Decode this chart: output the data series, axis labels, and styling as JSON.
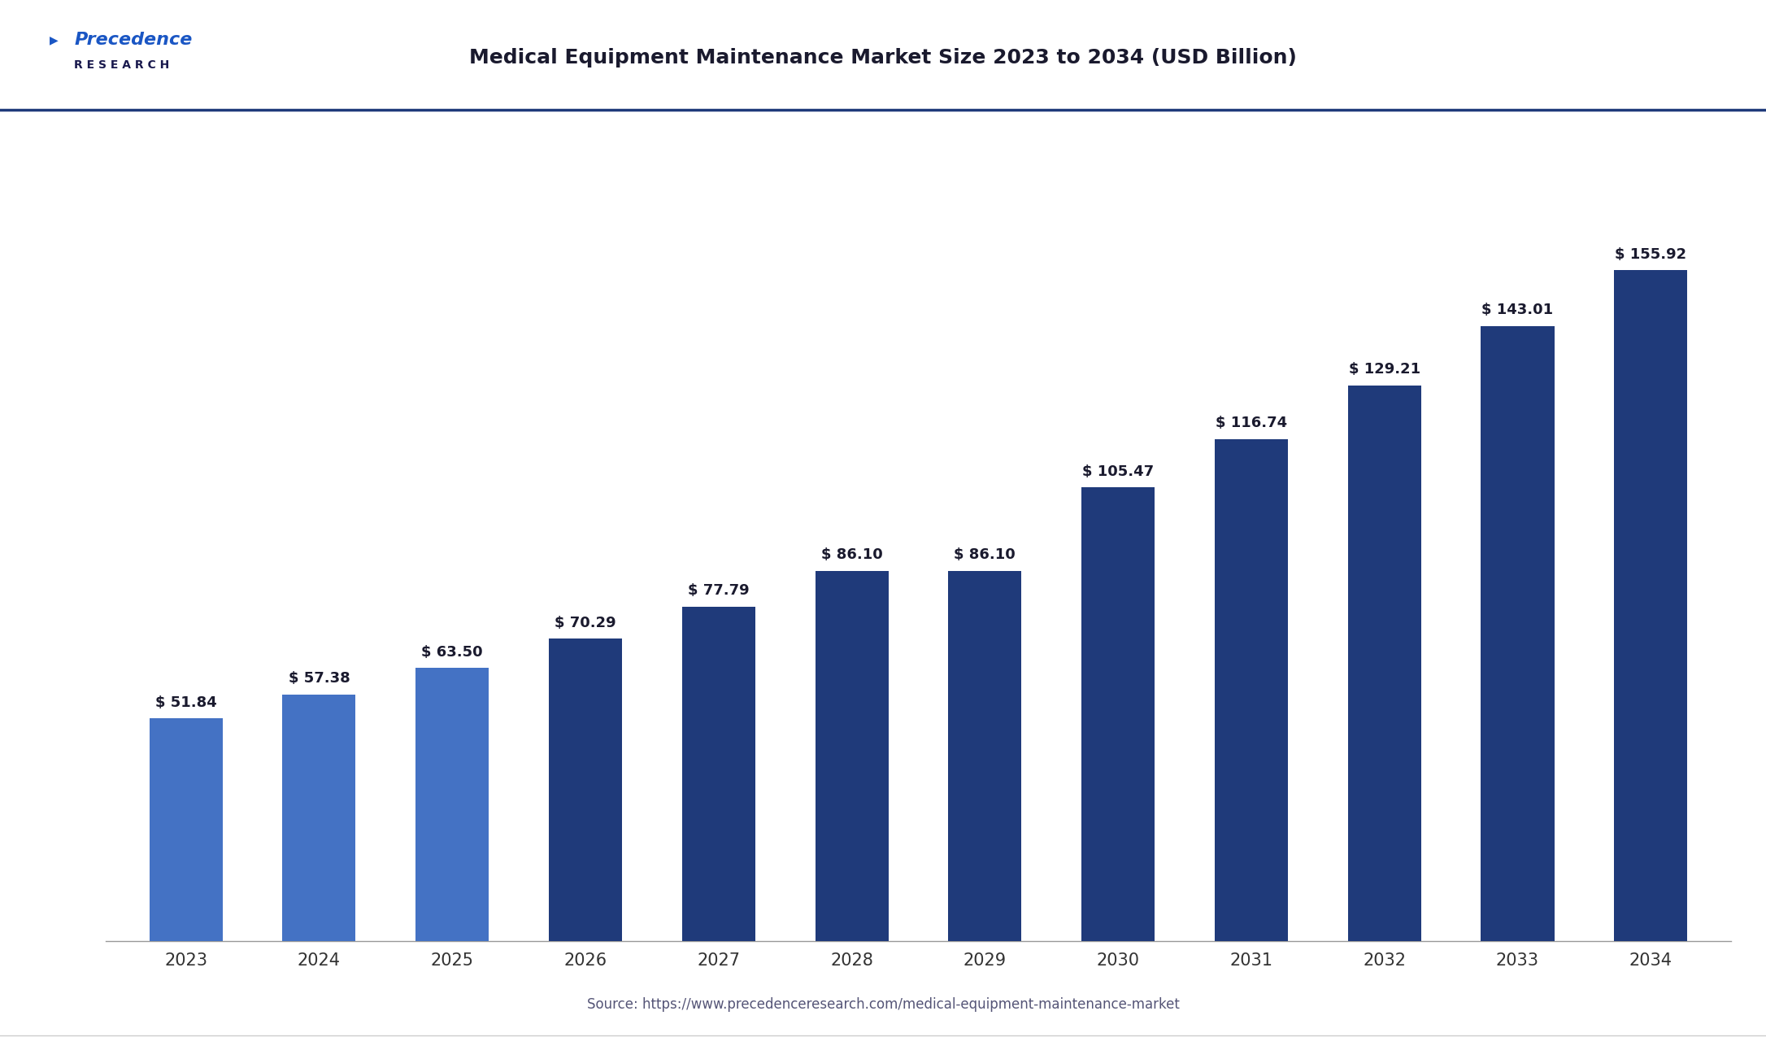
{
  "title": "Medical Equipment Maintenance Market Size 2023 to 2034 (USD Billion)",
  "categories": [
    "2023",
    "2024",
    "2025",
    "2026",
    "2027",
    "2028",
    "2029",
    "2030",
    "2031",
    "2032",
    "2033",
    "2034"
  ],
  "values": [
    51.84,
    57.38,
    63.5,
    70.29,
    77.79,
    86.1,
    86.1,
    105.47,
    116.74,
    129.21,
    143.01,
    155.92
  ],
  "bar_colors": [
    "#4472C4",
    "#4472C4",
    "#4472C4",
    "#1F3A7A",
    "#1F3A7A",
    "#1F3A7A",
    "#1F3A7A",
    "#1F3A7A",
    "#1F3A7A",
    "#1F3A7A",
    "#1F3A7A",
    "#1F3A7A"
  ],
  "label_prefix": "$ ",
  "source_text": "Source: https://www.precedenceresearch.com/medical-equipment-maintenance-market",
  "background_color": "#ffffff",
  "plot_bg_color": "#ffffff",
  "title_fontsize": 18,
  "tick_fontsize": 15,
  "label_fontsize": 13,
  "source_fontsize": 12,
  "ylim": [
    0,
    175
  ],
  "bar_width": 0.55,
  "title_color": "#1a1a2e",
  "axis_color": "#333333",
  "label_color": "#1a1a2e",
  "source_color": "#555577",
  "header_line_color": "#1F3A7A",
  "logo_text_1": "Precedence",
  "logo_text_2": "R E S E A R C H"
}
